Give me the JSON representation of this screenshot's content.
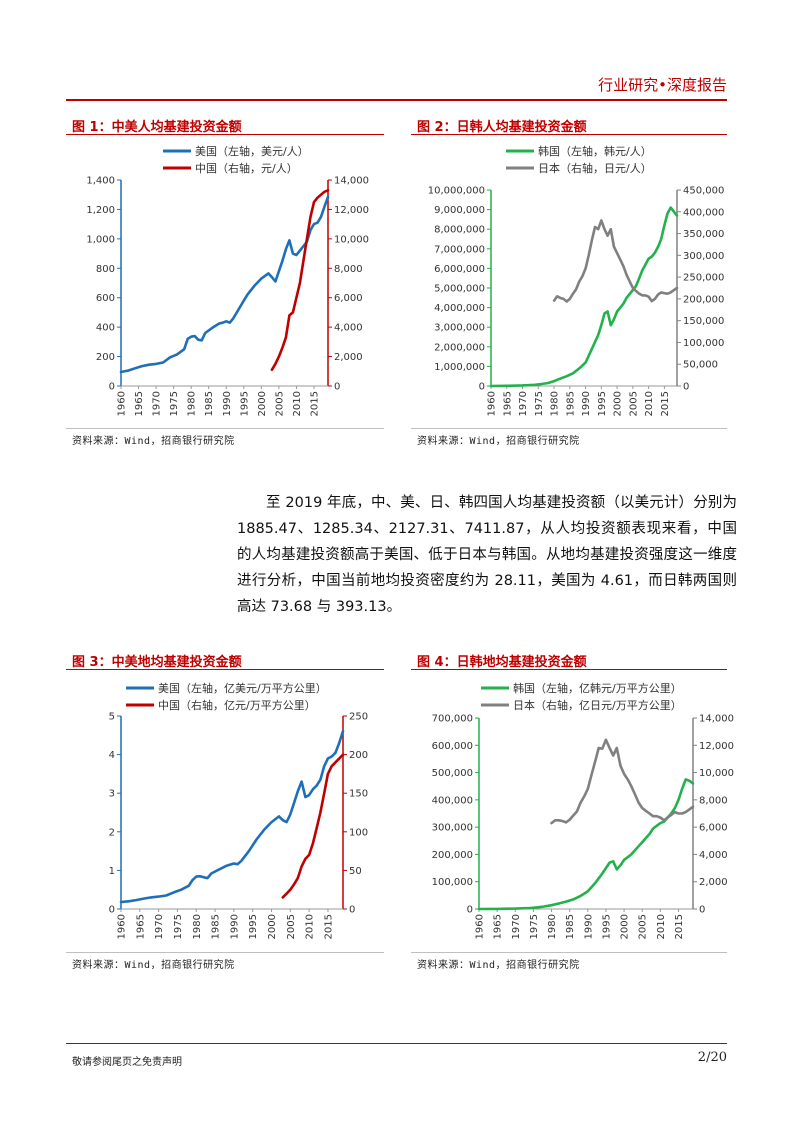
{
  "header": {
    "title": "行业研究•深度报告"
  },
  "footer": {
    "disclaimer": "敬请参阅尾页之免责声明",
    "page": "2/20"
  },
  "paragraph": "至 2019 年底，中、美、日、韩四国人均基建投资额（以美元计）分别为 1885.47、1285.34、2127.31、7411.87，从人均投资额表现来看，中国的人均基建投资额高于美国、低于日本与韩国。从地均基建投资强度这一维度进行分析，中国当前地均投资密度约为 28.11，美国为 4.61，而日韩两国则高达 73.68 与 393.13。",
  "colors": {
    "accent": "#c00000",
    "us": "#1f6fb8",
    "cn": "#c00000",
    "kr": "#22b24c",
    "jp": "#808080"
  },
  "figures": [
    {
      "title": "图 1：中美人均基建投资金额",
      "source": "资料来源：Wind，招商银行研究院"
    },
    {
      "title": "图 2：日韩人均基建投资金额",
      "source": "资料来源：Wind，招商银行研究院"
    },
    {
      "title": "图 3：中美地均基建投资金额",
      "source": "资料来源：Wind，招商银行研究院"
    },
    {
      "title": "图 4：日韩地均基建投资金额",
      "source": "资料来源：Wind，招商银行研究院"
    }
  ],
  "chart_data": [
    {
      "type": "line",
      "title": "图 1：中美人均基建投资金额",
      "x_ticks": [
        "1960",
        "1965",
        "1970",
        "1975",
        "1980",
        "1985",
        "1990",
        "1995",
        "2000",
        "2005",
        "2010",
        "2015"
      ],
      "left_axis": {
        "ylim": [
          0,
          1400
        ],
        "ticks": [
          "0",
          "200",
          "400",
          "600",
          "800",
          "1,000",
          "1,200",
          "1,400"
        ]
      },
      "right_axis": {
        "ylim": [
          0,
          14000
        ],
        "ticks": [
          "0",
          "2,000",
          "4,000",
          "6,000",
          "8,000",
          "10,000",
          "12,000",
          "14,000"
        ]
      },
      "legend": "top-center",
      "series": [
        {
          "name": "美国（左轴，美元/人）",
          "axis": "left",
          "color": "#1f6fb8",
          "x": [
            1960,
            1962,
            1964,
            1966,
            1968,
            1970,
            1972,
            1974,
            1976,
            1978,
            1979,
            1980,
            1981,
            1982,
            1983,
            1984,
            1986,
            1988,
            1989,
            1990,
            1991,
            1992,
            1994,
            1996,
            1998,
            2000,
            2002,
            2003,
            2004,
            2005,
            2006,
            2007,
            2008,
            2009,
            2010,
            2011,
            2012,
            2013,
            2014,
            2015,
            2016,
            2017,
            2018,
            2019
          ],
          "y": [
            95,
            105,
            120,
            135,
            145,
            150,
            160,
            195,
            215,
            250,
            320,
            335,
            340,
            315,
            310,
            360,
            395,
            425,
            430,
            440,
            430,
            460,
            540,
            620,
            680,
            730,
            765,
            740,
            710,
            780,
            850,
            930,
            990,
            900,
            890,
            920,
            950,
            980,
            1060,
            1100,
            1110,
            1150,
            1220,
            1285
          ]
        },
        {
          "name": "中国（右轴，元/人）",
          "axis": "right",
          "color": "#c00000",
          "x": [
            2003,
            2004,
            2005,
            2006,
            2007,
            2008,
            2009,
            2010,
            2011,
            2012,
            2013,
            2014,
            2015,
            2016,
            2017,
            2018,
            2019
          ],
          "y": [
            1100,
            1500,
            2000,
            2600,
            3300,
            4800,
            5000,
            6000,
            7000,
            8500,
            10000,
            11500,
            12500,
            12800,
            13000,
            13200,
            13300
          ]
        }
      ]
    },
    {
      "type": "line",
      "title": "图 2：日韩人均基建投资金额",
      "x_ticks": [
        "1960",
        "1965",
        "1970",
        "1975",
        "1980",
        "1985",
        "1990",
        "1995",
        "2000",
        "2005",
        "2010",
        "2015"
      ],
      "left_axis": {
        "ylim": [
          0,
          10000000
        ],
        "ticks": [
          "0",
          "1,000,000",
          "2,000,000",
          "3,000,000",
          "4,000,000",
          "5,000,000",
          "6,000,000",
          "7,000,000",
          "8,000,000",
          "9,000,000",
          "10,000,000"
        ]
      },
      "right_axis": {
        "ylim": [
          0,
          450000
        ],
        "ticks": [
          "0",
          "50,000",
          "100,000",
          "150,000",
          "200,000",
          "250,000",
          "300,000",
          "350,000",
          "400,000",
          "450,000"
        ]
      },
      "legend": "top-center",
      "series": [
        {
          "name": "韩国（左轴，韩元/人）",
          "axis": "left",
          "color": "#22b24c",
          "x": [
            1960,
            1965,
            1970,
            1974,
            1976,
            1978,
            1980,
            1982,
            1984,
            1986,
            1988,
            1990,
            1992,
            1994,
            1995,
            1996,
            1997,
            1998,
            1999,
            2000,
            2001,
            2002,
            2003,
            2004,
            2005,
            2006,
            2007,
            2008,
            2009,
            2010,
            2011,
            2012,
            2013,
            2014,
            2015,
            2016,
            2017,
            2018,
            2019
          ],
          "y": [
            0,
            10000,
            30000,
            60000,
            100000,
            150000,
            250000,
            380000,
            500000,
            650000,
            900000,
            1200000,
            1900000,
            2600000,
            3100000,
            3700000,
            3800000,
            3100000,
            3400000,
            3800000,
            4000000,
            4200000,
            4500000,
            4700000,
            4900000,
            5100000,
            5500000,
            5900000,
            6200000,
            6500000,
            6600000,
            6800000,
            7100000,
            7500000,
            8200000,
            8800000,
            9100000,
            8900000,
            8700000
          ]
        },
        {
          "name": "日本（右轴，日元/人）",
          "axis": "right",
          "color": "#808080",
          "x": [
            1980,
            1981,
            1982,
            1983,
            1984,
            1985,
            1986,
            1987,
            1988,
            1989,
            1990,
            1991,
            1992,
            1993,
            1994,
            1995,
            1996,
            1997,
            1998,
            1999,
            2000,
            2001,
            2002,
            2003,
            2004,
            2005,
            2006,
            2007,
            2008,
            2009,
            2010,
            2011,
            2012,
            2013,
            2014,
            2015,
            2016,
            2017,
            2018,
            2019
          ],
          "y": [
            196000,
            206000,
            202000,
            200000,
            194000,
            200000,
            212000,
            222000,
            240000,
            252000,
            270000,
            300000,
            335000,
            365000,
            360000,
            380000,
            360000,
            345000,
            360000,
            320000,
            305000,
            290000,
            275000,
            255000,
            240000,
            225000,
            218000,
            212000,
            208000,
            208000,
            205000,
            195000,
            200000,
            210000,
            215000,
            213000,
            212000,
            215000,
            220000,
            225000
          ]
        }
      ]
    },
    {
      "type": "line",
      "title": "图 3：中美地均基建投资金额",
      "x_ticks": [
        "1960",
        "1965",
        "1970",
        "1975",
        "1980",
        "1985",
        "1990",
        "1995",
        "2000",
        "2005",
        "2010",
        "2015"
      ],
      "left_axis": {
        "ylim": [
          0,
          5
        ],
        "ticks": [
          "0",
          "1",
          "2",
          "3",
          "4",
          "5"
        ]
      },
      "right_axis": {
        "ylim": [
          0,
          250
        ],
        "ticks": [
          "0",
          "50",
          "100",
          "150",
          "200",
          "250"
        ]
      },
      "legend": "top-center",
      "series": [
        {
          "name": "美国（左轴，亿美元/万平方公里）",
          "axis": "left",
          "color": "#1f6fb8",
          "x": [
            1960,
            1962,
            1964,
            1966,
            1968,
            1970,
            1972,
            1974,
            1976,
            1978,
            1979,
            1980,
            1981,
            1982,
            1983,
            1984,
            1986,
            1988,
            1989,
            1990,
            1991,
            1992,
            1994,
            1996,
            1998,
            2000,
            2002,
            2003,
            2004,
            2005,
            2006,
            2007,
            2008,
            2009,
            2010,
            2011,
            2012,
            2013,
            2014,
            2015,
            2016,
            2017,
            2018,
            2019
          ],
          "y": [
            0.18,
            0.2,
            0.23,
            0.27,
            0.3,
            0.32,
            0.35,
            0.43,
            0.5,
            0.6,
            0.75,
            0.84,
            0.85,
            0.82,
            0.8,
            0.92,
            1.02,
            1.12,
            1.15,
            1.18,
            1.16,
            1.25,
            1.5,
            1.8,
            2.05,
            2.25,
            2.4,
            2.3,
            2.25,
            2.45,
            2.75,
            3.05,
            3.3,
            2.9,
            2.95,
            3.1,
            3.2,
            3.35,
            3.7,
            3.9,
            3.95,
            4.05,
            4.3,
            4.61
          ]
        },
        {
          "name": "中国（右轴，亿元/万平方公里）",
          "axis": "right",
          "color": "#c00000",
          "x": [
            2003,
            2004,
            2005,
            2006,
            2007,
            2008,
            2009,
            2010,
            2011,
            2012,
            2013,
            2014,
            2015,
            2016,
            2017,
            2018,
            2019
          ],
          "y": [
            15,
            20,
            25,
            32,
            40,
            55,
            65,
            70,
            85,
            105,
            125,
            150,
            175,
            185,
            190,
            195,
            200
          ]
        }
      ]
    },
    {
      "type": "line",
      "title": "图 4：日韩地均基建投资金额",
      "x_ticks": [
        "1960",
        "1965",
        "1970",
        "1975",
        "1980",
        "1985",
        "1990",
        "1995",
        "2000",
        "2005",
        "2010",
        "2015"
      ],
      "left_axis": {
        "ylim": [
          0,
          700000
        ],
        "ticks": [
          "0",
          "100,000",
          "200,000",
          "300,000",
          "400,000",
          "500,000",
          "600,000",
          "700,000"
        ]
      },
      "right_axis": {
        "ylim": [
          0,
          14000
        ],
        "ticks": [
          "0",
          "2,000",
          "4,000",
          "6,000",
          "8,000",
          "10,000",
          "12,000",
          "14,000"
        ]
      },
      "legend": "top-center",
      "series": [
        {
          "name": "韩国（左轴，亿韩元/万平方公里）",
          "axis": "left",
          "color": "#22b24c",
          "x": [
            1960,
            1965,
            1970,
            1974,
            1976,
            1978,
            1980,
            1982,
            1984,
            1986,
            1988,
            1990,
            1992,
            1994,
            1995,
            1996,
            1997,
            1998,
            1999,
            2000,
            2001,
            2002,
            2003,
            2004,
            2005,
            2006,
            2007,
            2008,
            2009,
            2010,
            2011,
            2012,
            2013,
            2014,
            2015,
            2016,
            2017,
            2018,
            2019
          ],
          "y": [
            0,
            500,
            1500,
            3500,
            6000,
            9000,
            14000,
            20000,
            27000,
            35000,
            48000,
            65000,
            95000,
            130000,
            150000,
            170000,
            175000,
            145000,
            160000,
            180000,
            190000,
            200000,
            215000,
            230000,
            245000,
            260000,
            275000,
            295000,
            305000,
            315000,
            320000,
            335000,
            350000,
            370000,
            400000,
            440000,
            475000,
            470000,
            460000
          ]
        },
        {
          "name": "日本（右轴，亿日元/万平方公里）",
          "axis": "right",
          "color": "#808080",
          "x": [
            1980,
            1981,
            1982,
            1983,
            1984,
            1985,
            1986,
            1987,
            1988,
            1989,
            1990,
            1991,
            1992,
            1993,
            1994,
            1995,
            1996,
            1997,
            1998,
            1999,
            2000,
            2001,
            2002,
            2003,
            2004,
            2005,
            2006,
            2007,
            2008,
            2009,
            2010,
            2011,
            2012,
            2013,
            2014,
            2015,
            2016,
            2017,
            2018,
            2019
          ],
          "y": [
            6300,
            6500,
            6500,
            6450,
            6350,
            6550,
            6850,
            7150,
            7800,
            8250,
            8800,
            9800,
            10800,
            11800,
            11750,
            12400,
            11800,
            11250,
            11800,
            10500,
            9900,
            9500,
            9000,
            8400,
            7800,
            7400,
            7200,
            7000,
            6800,
            6800,
            6700,
            6500,
            6700,
            6900,
            7100,
            7000,
            7000,
            7100,
            7300,
            7500
          ]
        }
      ]
    }
  ]
}
